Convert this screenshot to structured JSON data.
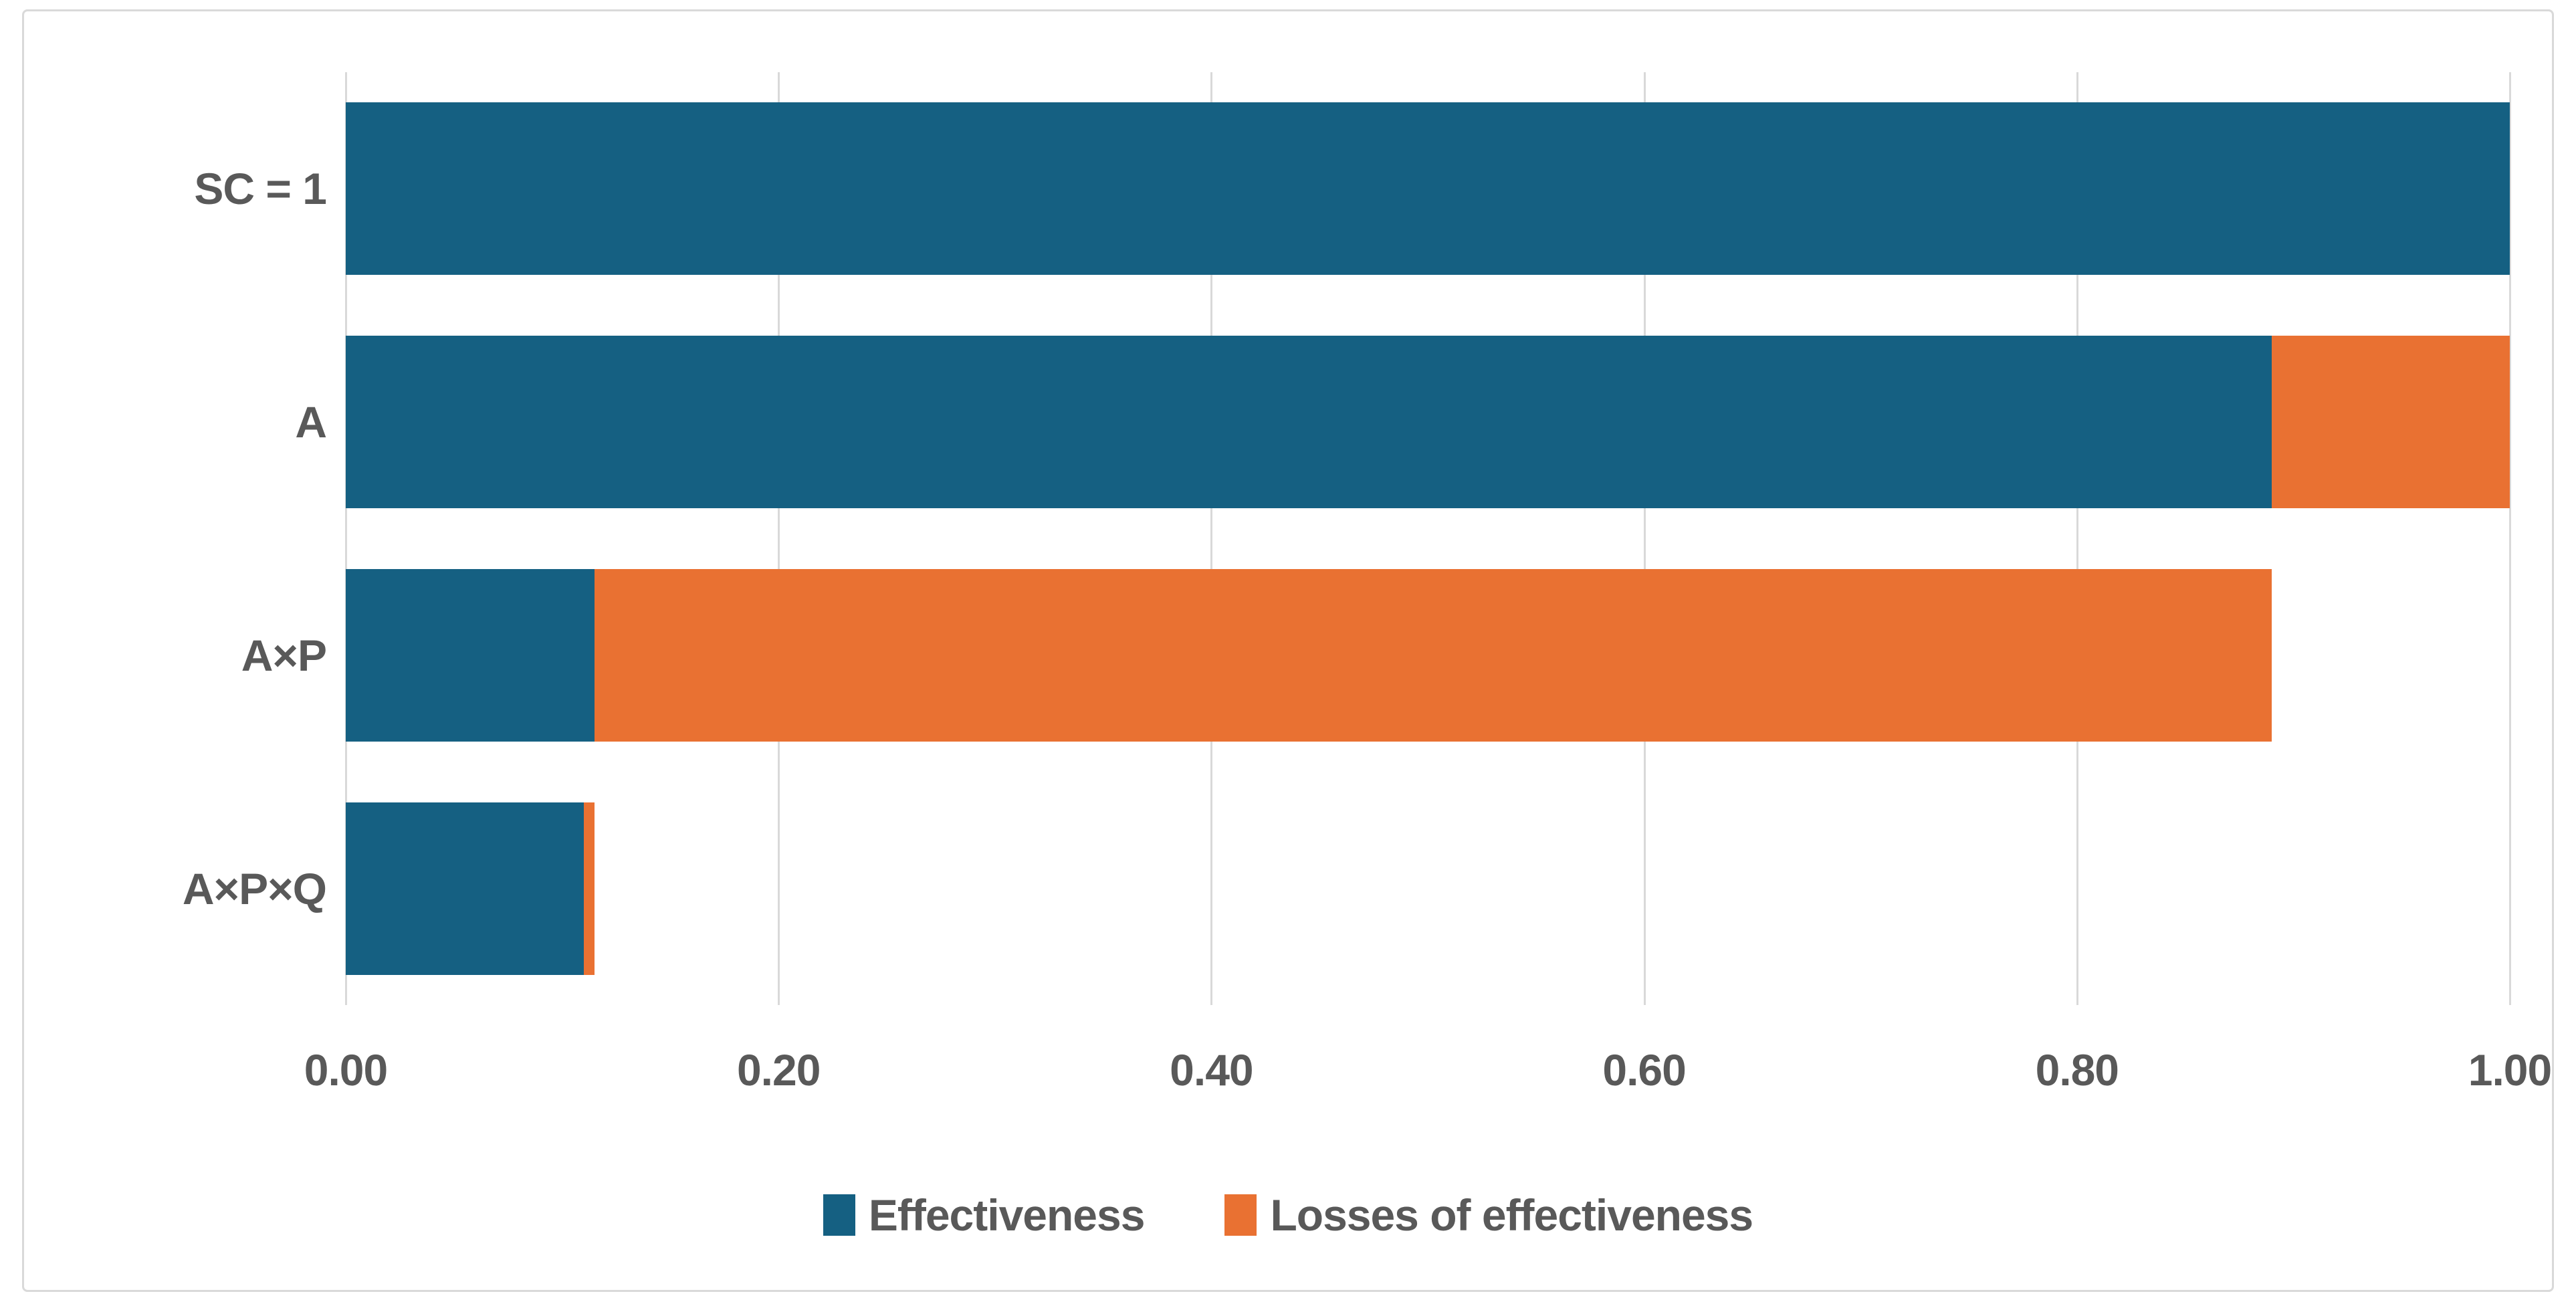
{
  "chart_data": {
    "type": "bar",
    "orientation": "horizontal",
    "stacked": true,
    "title": "",
    "xlabel": "",
    "ylabel": "",
    "xlim": [
      0,
      1
    ],
    "grid": "vertical",
    "legend_position": "bottom",
    "categories": [
      "SC = 1",
      "A",
      "A×P",
      "A×P×Q"
    ],
    "series": [
      {
        "name": "Effectiveness",
        "color": "#156082",
        "values": [
          1.0,
          0.89,
          0.115,
          0.11
        ]
      },
      {
        "name": "Losses of effectiveness",
        "color": "#E97132",
        "values": [
          0.0,
          0.11,
          0.775,
          0.005
        ]
      }
    ],
    "x_ticks": [
      "0.00",
      "0.20",
      "0.40",
      "0.60",
      "0.80",
      "1.00"
    ]
  },
  "styles": {
    "gridline_color": "#d9d9d9",
    "frame_border_color": "#d9d9d9",
    "text_color": "#595959",
    "background_color": "#ffffff"
  }
}
